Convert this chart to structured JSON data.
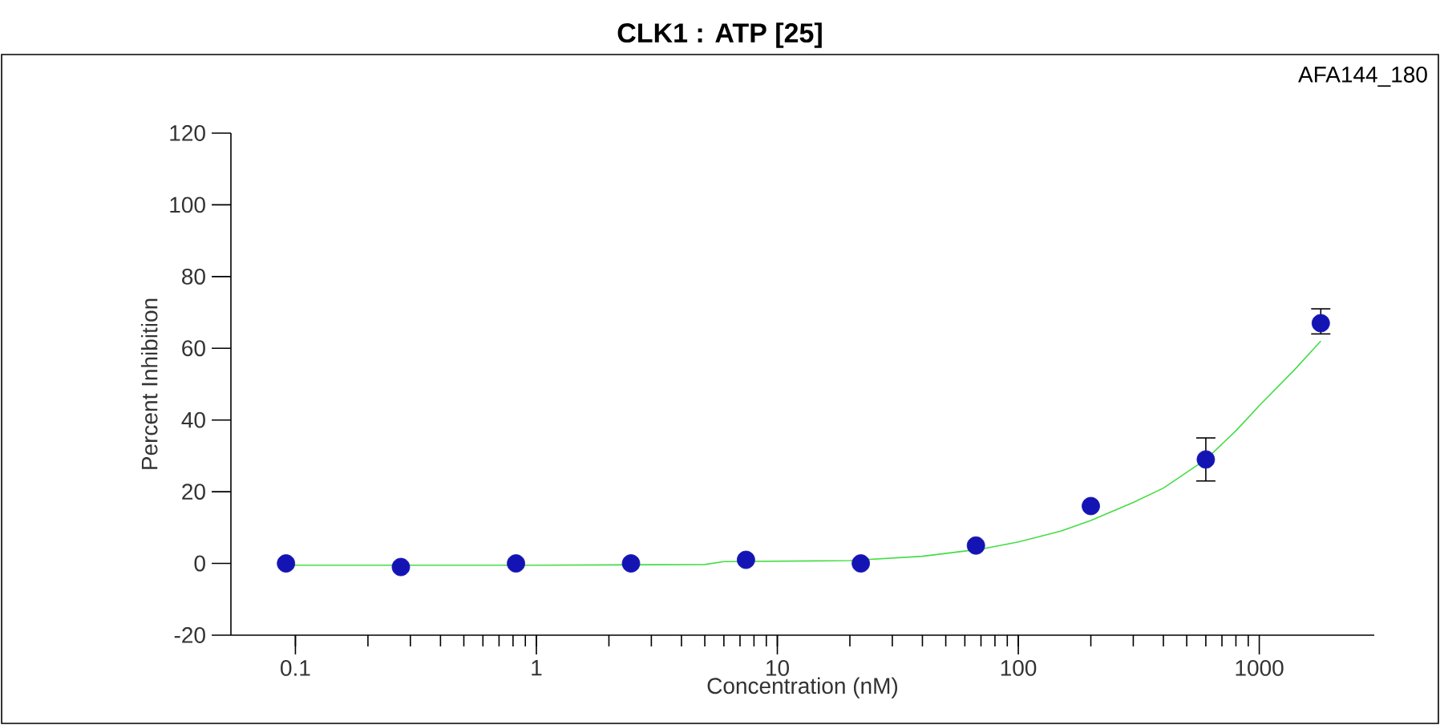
{
  "chart_data": {
    "type": "scatter",
    "title": "CLK1  :  ATP  [25]",
    "xlabel": "Concentration  (nM)",
    "ylabel": "Percent  Inhibition",
    "annotations": [
      "AFA144_180"
    ],
    "log": "x",
    "xlim": [
      0.054,
      3000
    ],
    "xticks": [
      0.1,
      1,
      10,
      100,
      1000
    ],
    "ylim": [
      -20,
      120
    ],
    "yticks": [
      -20,
      0,
      20,
      40,
      60,
      80,
      100,
      120
    ],
    "grid": false,
    "series": [
      {
        "color": "#1414b4",
        "marker": "circle",
        "x": [
          0.0914,
          0.274,
          0.823,
          2.47,
          7.41,
          22.2,
          66.7,
          200,
          600,
          1800
        ],
        "values": [
          0,
          -1,
          0,
          0,
          1,
          0,
          5,
          16,
          29,
          67
        ],
        "errors": [
          null,
          null,
          null,
          null,
          null,
          null,
          null,
          null,
          [
            23,
            35
          ],
          [
            64,
            71
          ]
        ]
      },
      {
        "type": "line",
        "color": "#44dd44",
        "marker": "none",
        "line_style": "solid",
        "x": [
          0.09,
          1,
          5,
          6,
          20,
          40,
          70,
          100,
          150,
          200,
          300,
          400,
          600,
          800,
          1000,
          1400,
          1800
        ],
        "values": [
          -0.5,
          -0.5,
          -0.3,
          0.5,
          0.8,
          2,
          4,
          6,
          9,
          12,
          17,
          21,
          29,
          37,
          44,
          54,
          62
        ]
      }
    ]
  }
}
